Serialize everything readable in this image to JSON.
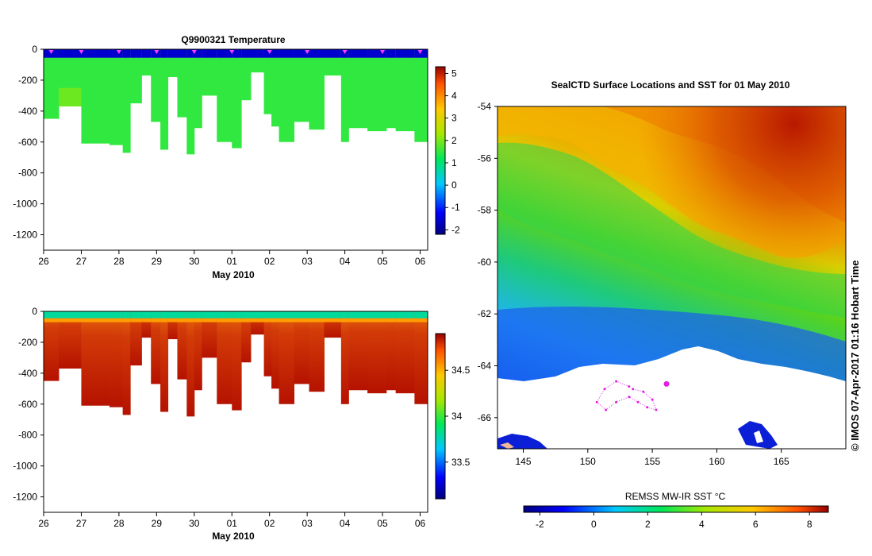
{
  "chart_data": [
    {
      "id": "temperature-section",
      "type": "heatmap",
      "title": "Q9900321  Temperature",
      "xlabel": "May 2010",
      "ylabel": "",
      "x_tick_labels": [
        "26",
        "27",
        "28",
        "29",
        "30",
        "01",
        "02",
        "03",
        "04",
        "05",
        "06"
      ],
      "x_range_days": [
        0,
        10.2
      ],
      "ylim": [
        -1300,
        0
      ],
      "y_tick_values": [
        0,
        -200,
        -400,
        -600,
        -800,
        -1000,
        -1200
      ],
      "y_tick_labels": [
        "0",
        "-200",
        "-400",
        "-600",
        "-800",
        "-1000",
        "-1200"
      ],
      "colorbar": {
        "min": -2.2,
        "max": 5.3,
        "tick_values": [
          5,
          4,
          3,
          2,
          1,
          0,
          -1,
          -2
        ],
        "tick_labels": [
          "5",
          "4",
          "3",
          "2",
          "1",
          "0",
          "-1",
          "-2"
        ]
      },
      "layers": {
        "surface_temp": -1.6,
        "mixed_temp": 1.3,
        "deep_temp": 1.5
      },
      "surface_marker_days": [
        0.2,
        1.0,
        2.0,
        3.0,
        4.0,
        5.0,
        6.0,
        7.0,
        8.0,
        9.0,
        10.0
      ],
      "profile_depths": [
        {
          "t0": 0.0,
          "t1": 0.4,
          "depth": 450
        },
        {
          "t0": 0.4,
          "t1": 1.0,
          "depth": 370
        },
        {
          "t0": 1.0,
          "t1": 1.75,
          "depth": 610
        },
        {
          "t0": 1.75,
          "t1": 2.1,
          "depth": 620
        },
        {
          "t0": 2.1,
          "t1": 2.3,
          "depth": 670
        },
        {
          "t0": 2.3,
          "t1": 2.6,
          "depth": 350
        },
        {
          "t0": 2.6,
          "t1": 2.85,
          "depth": 170
        },
        {
          "t0": 2.85,
          "t1": 3.1,
          "depth": 470
        },
        {
          "t0": 3.1,
          "t1": 3.3,
          "depth": 650
        },
        {
          "t0": 3.3,
          "t1": 3.55,
          "depth": 180
        },
        {
          "t0": 3.55,
          "t1": 3.8,
          "depth": 440
        },
        {
          "t0": 3.8,
          "t1": 4.0,
          "depth": 680
        },
        {
          "t0": 4.0,
          "t1": 4.2,
          "depth": 510
        },
        {
          "t0": 4.2,
          "t1": 4.6,
          "depth": 300
        },
        {
          "t0": 4.6,
          "t1": 5.0,
          "depth": 600
        },
        {
          "t0": 5.0,
          "t1": 5.25,
          "depth": 640
        },
        {
          "t0": 5.25,
          "t1": 5.5,
          "depth": 330
        },
        {
          "t0": 5.5,
          "t1": 5.85,
          "depth": 150
        },
        {
          "t0": 5.85,
          "t1": 6.05,
          "depth": 420
        },
        {
          "t0": 6.05,
          "t1": 6.25,
          "depth": 500
        },
        {
          "t0": 6.25,
          "t1": 6.65,
          "depth": 600
        },
        {
          "t0": 6.65,
          "t1": 7.05,
          "depth": 470
        },
        {
          "t0": 7.05,
          "t1": 7.45,
          "depth": 520
        },
        {
          "t0": 7.45,
          "t1": 7.9,
          "depth": 170
        },
        {
          "t0": 7.9,
          "t1": 8.1,
          "depth": 600
        },
        {
          "t0": 8.1,
          "t1": 8.6,
          "depth": 510
        },
        {
          "t0": 8.6,
          "t1": 9.1,
          "depth": 530
        },
        {
          "t0": 9.1,
          "t1": 9.35,
          "depth": 510
        },
        {
          "t0": 9.35,
          "t1": 9.85,
          "depth": 530
        },
        {
          "t0": 9.85,
          "t1": 10.2,
          "depth": 600
        }
      ]
    },
    {
      "id": "salinity-section",
      "type": "heatmap",
      "title": "",
      "xlabel": "May 2010",
      "ylabel": "",
      "x_tick_labels": [
        "26",
        "27",
        "28",
        "29",
        "30",
        "01",
        "02",
        "03",
        "04",
        "05",
        "06"
      ],
      "x_range_days": [
        0,
        10.2
      ],
      "ylim": [
        -1300,
        0
      ],
      "y_tick_values": [
        0,
        -200,
        -400,
        -600,
        -800,
        -1000,
        -1200
      ],
      "y_tick_labels": [
        "0",
        "-200",
        "-400",
        "-600",
        "-800",
        "-1000",
        "-1200"
      ],
      "colorbar": {
        "min": 33.1,
        "max": 34.9,
        "tick_values": [
          34.5,
          34,
          33.5
        ],
        "tick_labels": [
          "34.5",
          "34",
          "33.5"
        ]
      },
      "layers": {
        "surface_sal": 33.8,
        "upper_sal": 34.55,
        "deep_sal": 34.72
      }
    },
    {
      "id": "sst-map",
      "type": "heatmap",
      "title": "SealCTD Surface Locations and SST for 01 May 2010",
      "xlabel": "",
      "ylabel": "",
      "xlim": [
        143,
        170
      ],
      "ylim": [
        -67.2,
        -54
      ],
      "x_tick_values": [
        145,
        150,
        155,
        160,
        165
      ],
      "x_tick_labels": [
        "145",
        "150",
        "155",
        "160",
        "165"
      ],
      "y_tick_values": [
        -54,
        -56,
        -58,
        -60,
        -62,
        -64,
        -66
      ],
      "y_tick_labels": [
        "-54",
        "-56",
        "-58",
        "-60",
        "-62",
        "-64",
        "-66"
      ],
      "colorbar": {
        "label": "REMSS MW-IR SST °C",
        "min": -2.6,
        "max": 8.7,
        "tick_values": [
          -2,
          0,
          2,
          4,
          6,
          8
        ],
        "tick_labels": [
          "-2",
          "0",
          "2",
          "4",
          "6",
          "8"
        ]
      },
      "seal_track": [
        {
          "lon": 153.5,
          "lat": -64.9
        },
        {
          "lon": 154.3,
          "lat": -65.0
        },
        {
          "lon": 155.0,
          "lat": -65.3
        },
        {
          "lon": 155.3,
          "lat": -65.7
        },
        {
          "lon": 154.6,
          "lat": -65.6
        },
        {
          "lon": 153.9,
          "lat": -65.4
        },
        {
          "lon": 153.2,
          "lat": -65.2
        },
        {
          "lon": 152.2,
          "lat": -65.4
        },
        {
          "lon": 151.4,
          "lat": -65.7
        },
        {
          "lon": 150.7,
          "lat": -65.4
        },
        {
          "lon": 151.3,
          "lat": -64.9
        },
        {
          "lon": 152.2,
          "lat": -64.6
        },
        {
          "lon": 153.2,
          "lat": -64.8
        }
      ],
      "current_position": {
        "lon": 156.1,
        "lat": -64.7
      }
    }
  ],
  "credit": "© IMOS 07-Apr-2017 01:16 Hobart Time"
}
